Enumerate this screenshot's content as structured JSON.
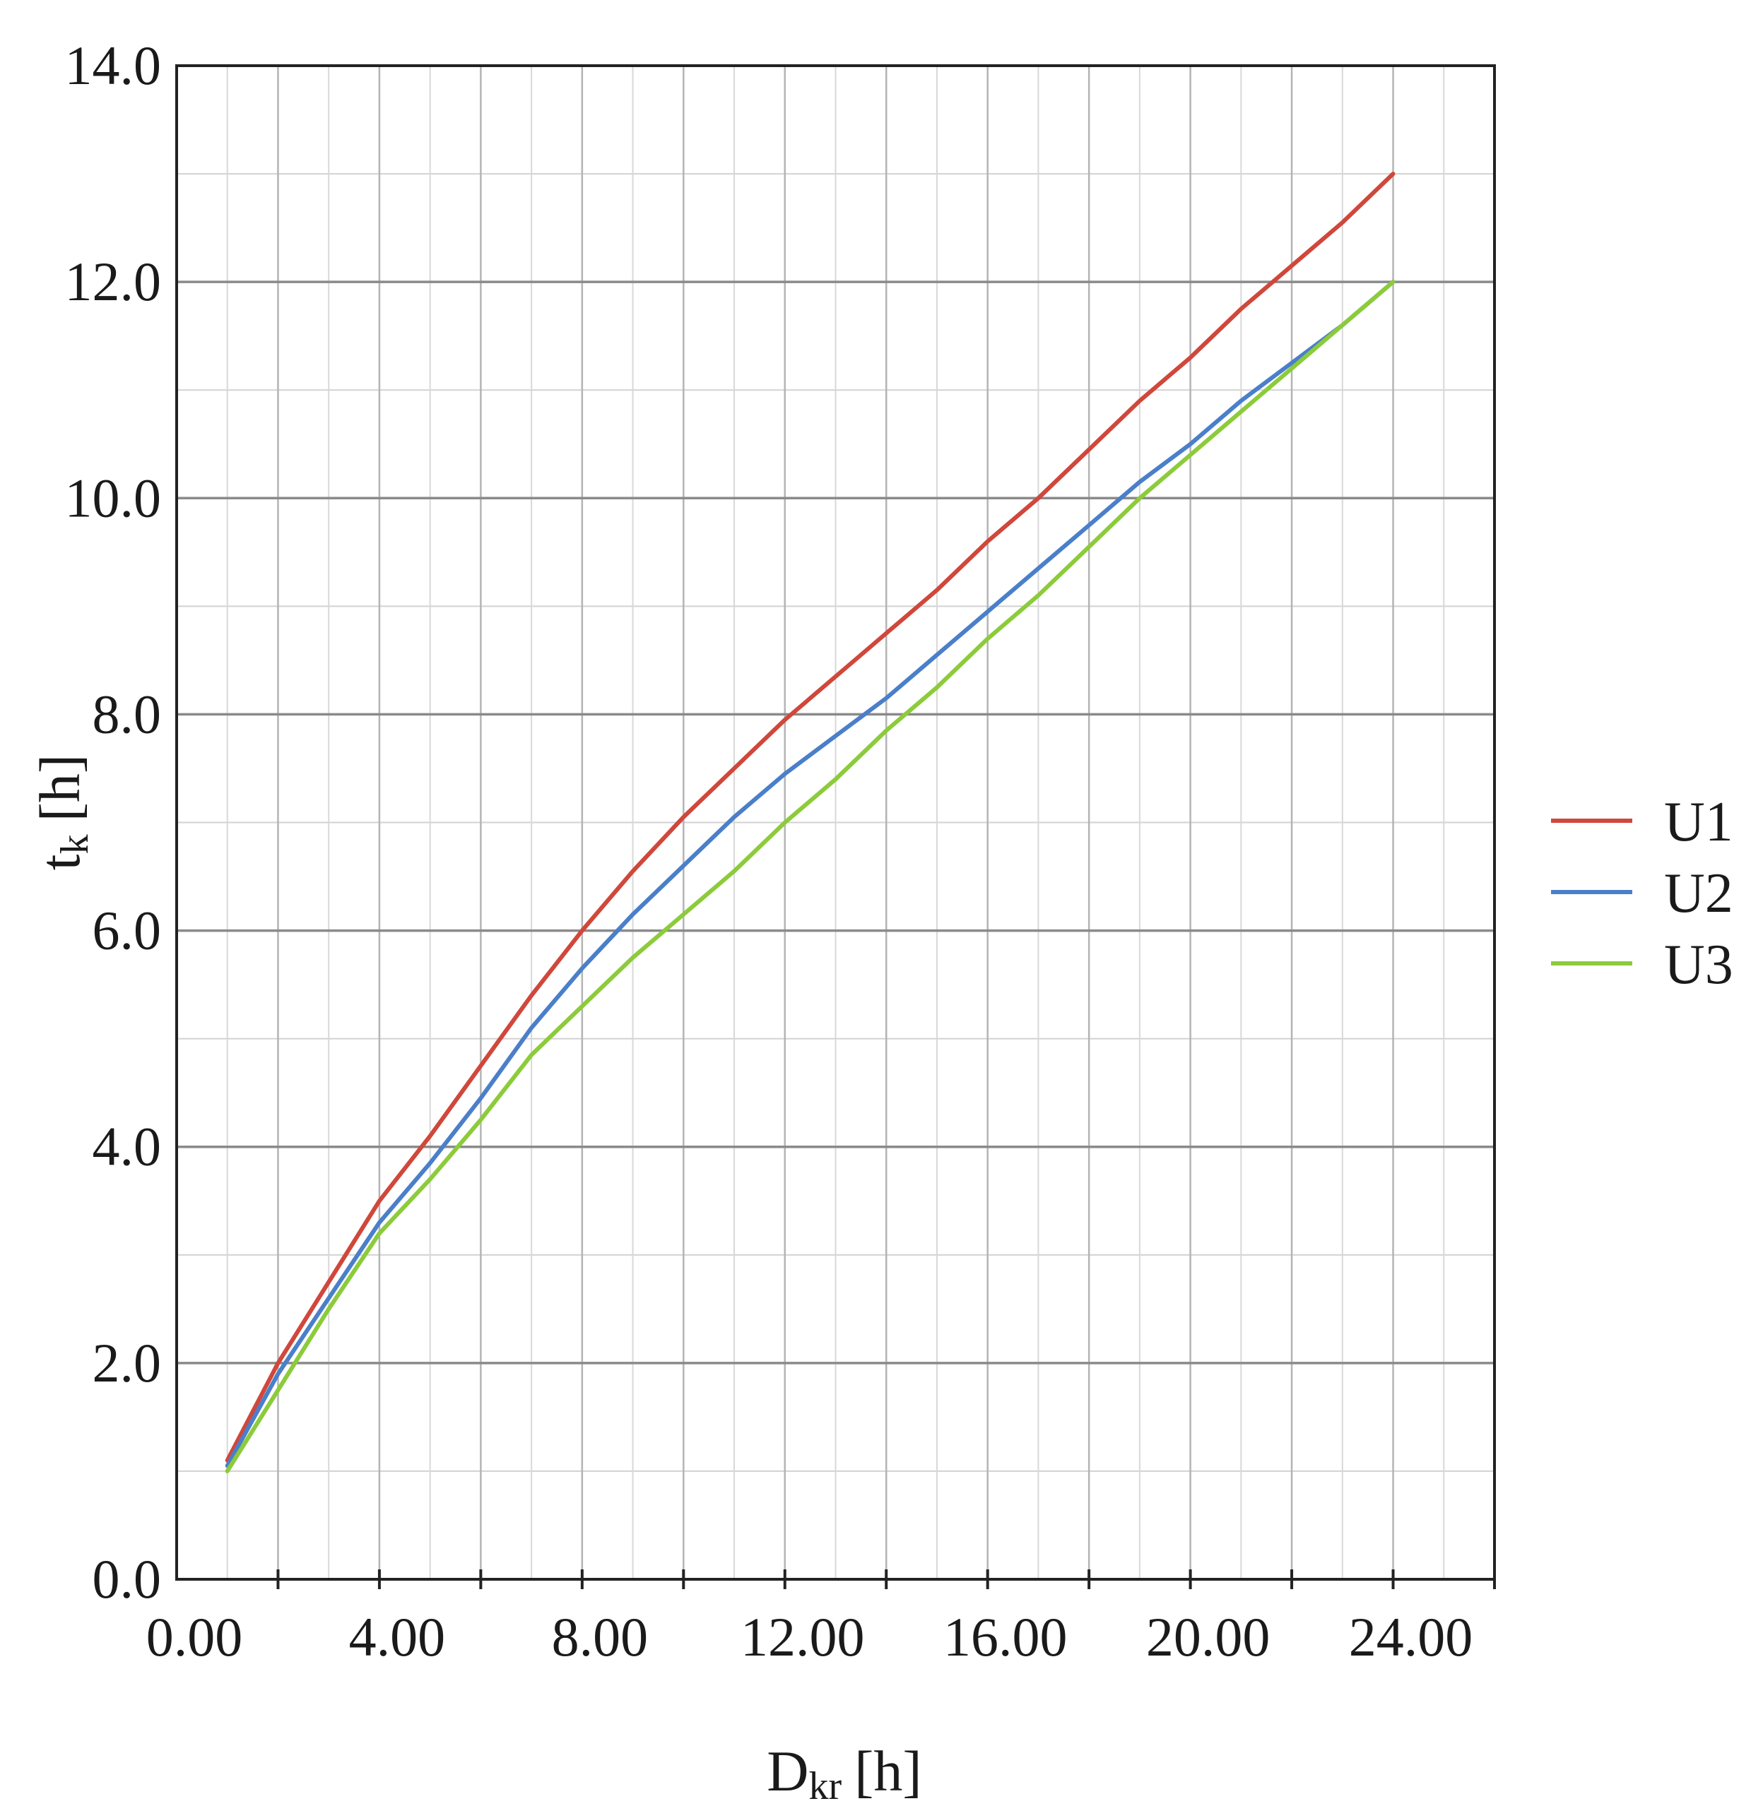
{
  "chart_data": {
    "type": "line",
    "xlabel": {
      "main": "D",
      "sub": "kr",
      "unit": "[h]"
    },
    "ylabel": {
      "main": "t",
      "sub": "k",
      "unit": "[h]"
    },
    "xlim": [
      0,
      26
    ],
    "ylim": [
      0,
      14
    ],
    "x_ticks": [
      0,
      4,
      8,
      12,
      16,
      20,
      24
    ],
    "x_tick_labels": [
      "0.00",
      "4.00",
      "8.00",
      "12.00",
      "16.00",
      "20.00",
      "24.00"
    ],
    "y_ticks": [
      0,
      2,
      4,
      6,
      8,
      10,
      12,
      14
    ],
    "y_tick_labels": [
      "0.0",
      "2.0",
      "4.0",
      "6.0",
      "8.0",
      "10.0",
      "12.0",
      "14.0"
    ],
    "grid": true,
    "legend_position": "right",
    "series": [
      {
        "name": "U1",
        "color": "#d0473b",
        "x": [
          1,
          2,
          3,
          4,
          5,
          6,
          7,
          8,
          9,
          10,
          11,
          12,
          13,
          14,
          15,
          16,
          17,
          18,
          19,
          20,
          21,
          22,
          23,
          24
        ],
        "y": [
          1.1,
          2.0,
          2.75,
          3.5,
          4.1,
          4.75,
          5.4,
          6.0,
          6.55,
          7.05,
          7.5,
          7.95,
          8.35,
          8.75,
          9.15,
          9.6,
          10.0,
          10.45,
          10.9,
          11.3,
          11.75,
          12.15,
          12.55,
          13.0
        ]
      },
      {
        "name": "U2",
        "color": "#4a7fc9",
        "x": [
          1,
          2,
          3,
          4,
          5,
          6,
          7,
          8,
          9,
          10,
          11,
          12,
          13,
          14,
          15,
          16,
          17,
          18,
          19,
          20,
          21,
          22,
          23,
          24
        ],
        "y": [
          1.05,
          1.9,
          2.6,
          3.3,
          3.85,
          4.45,
          5.1,
          5.65,
          6.15,
          6.6,
          7.05,
          7.45,
          7.8,
          8.15,
          8.55,
          8.95,
          9.35,
          9.75,
          10.15,
          10.5,
          10.9,
          11.25,
          11.6,
          12.0
        ]
      },
      {
        "name": "U3",
        "color": "#8ccb3a",
        "x": [
          1,
          2,
          3,
          4,
          5,
          6,
          7,
          8,
          9,
          10,
          11,
          12,
          13,
          14,
          15,
          16,
          17,
          18,
          19,
          20,
          21,
          22,
          23,
          24
        ],
        "y": [
          1.0,
          1.75,
          2.5,
          3.2,
          3.7,
          4.25,
          4.85,
          5.3,
          5.75,
          6.15,
          6.55,
          7.0,
          7.4,
          7.85,
          8.25,
          8.7,
          9.1,
          9.55,
          10.0,
          10.4,
          10.8,
          11.2,
          11.6,
          12.0
        ]
      }
    ]
  }
}
